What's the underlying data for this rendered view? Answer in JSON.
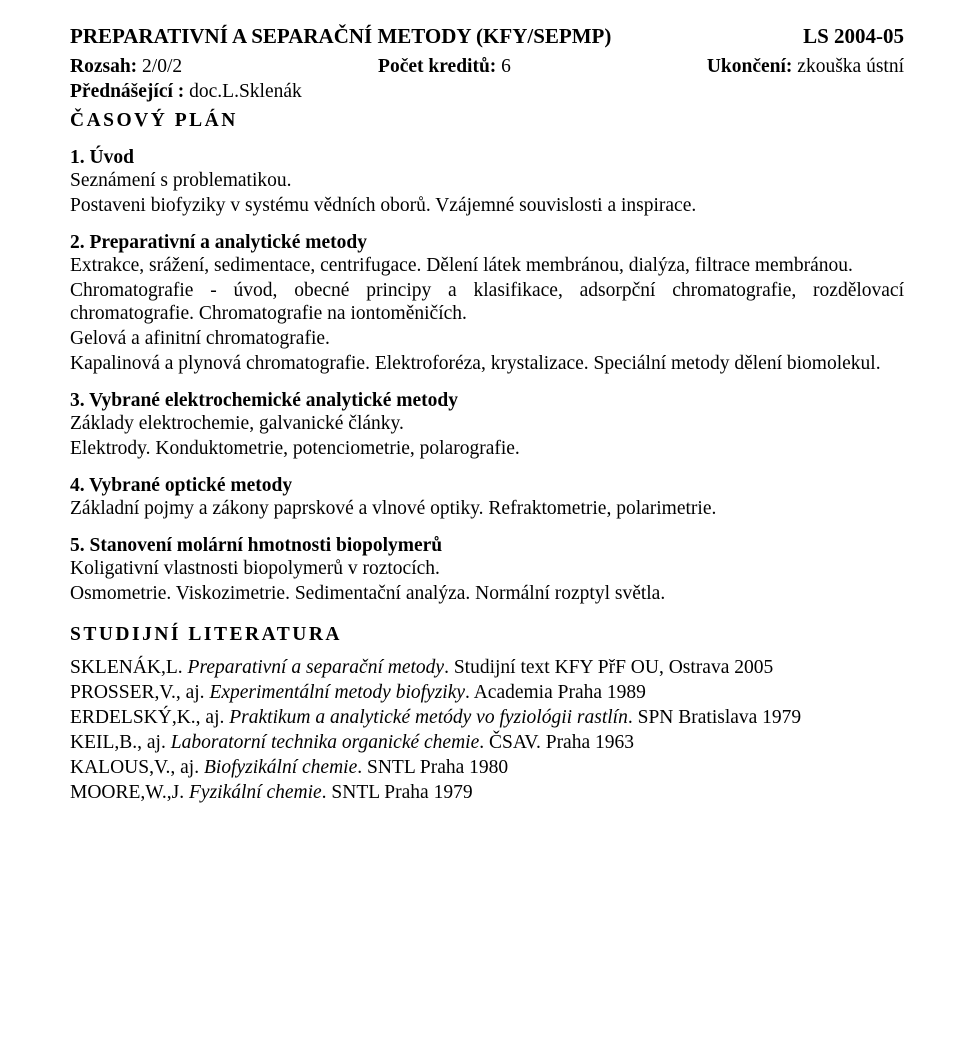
{
  "header": {
    "title_left": "PREPARATIVNÍ A SEPARAČNÍ METODY (KFY/SEPMP)",
    "title_right": "LS 2004-05",
    "rozsah_label": "Rozsah:",
    "rozsah_value": " 2/0/2",
    "kredity_label": "Počet kreditů:",
    "kredity_value": " 6",
    "ukonceni_label": "Ukončení:",
    "ukonceni_value": " zkouška ústní",
    "prednasejici_label": "Přednášející :",
    "prednasejici_value": " doc.L.Sklenák"
  },
  "plan_heading": "ČASOVÝ PLÁN",
  "sections": [
    {
      "title": "1. Úvod",
      "paras": [
        "Seznámení s problematikou.",
        "Postaveni biofyziky v systému vědních oborů. Vzájemné souvislosti a inspirace."
      ]
    },
    {
      "title": "2. Preparativní a analytické metody",
      "paras": [
        "Extrakce, srážení, sedimentace, centrifugace. Dělení látek membránou, dialýza, filtrace membránou.",
        "Chromatografie - úvod, obecné principy a klasifikace, adsorpční chromatografie, rozdělovací chromatografie. Chromatografie na iontoměničích.",
        "Gelová a afinitní chromatografie.",
        "Kapalinová a plynová chromatografie. Elektroforéza, krystalizace. Speciální metody dělení biomolekul."
      ]
    },
    {
      "title": "3. Vybrané elektrochemické analytické metody",
      "paras": [
        "Základy elektrochemie, galvanické články.",
        "Elektrody. Konduktometrie, potenciometrie, polarografie."
      ]
    },
    {
      "title": "4. Vybrané optické metody",
      "paras": [
        "Základní pojmy a zákony paprskové a vlnové optiky. Refraktometrie, polarimetrie."
      ]
    },
    {
      "title": "5. Stanovení molární hmotnosti biopolymerů",
      "paras": [
        "Koligativní vlastnosti biopolymerů v roztocích.",
        "Osmometrie. Viskozimetrie. Sedimentační analýza. Normální rozptyl světla."
      ]
    }
  ],
  "lit_heading": "STUDIJNÍ LITERATURA",
  "literature": [
    {
      "pre": "SKLENÁK,L. ",
      "title": "Preparativní a separační metody",
      "post": ". Studijní text KFY PřF OU, Ostrava 2005"
    },
    {
      "pre": "PROSSER,V., aj. ",
      "title": "Experimentální metody biofyziky",
      "post": ". Academia Praha 1989"
    },
    {
      "pre": "ERDELSKÝ,K., aj. ",
      "title": "Praktikum a analytické metódy vo fyziológii rastlín",
      "post": ". SPN Bratislava 1979"
    },
    {
      "pre": "KEIL,B., aj. ",
      "title": "Laboratorní technika organické chemie",
      "post": ". ČSAV. Praha 1963"
    },
    {
      "pre": "KALOUS,V., aj. ",
      "title": "Biofyzikální chemie",
      "post": ". SNTL Praha 1980"
    },
    {
      "pre": "MOORE,W.,J. ",
      "title": "Fyzikální chemie",
      "post": ". SNTL Praha 1979"
    }
  ]
}
